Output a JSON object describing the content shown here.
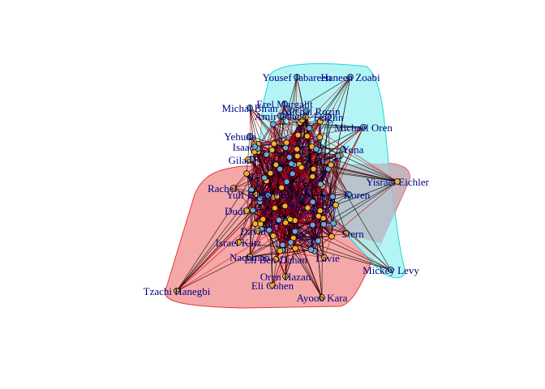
{
  "diagram": {
    "type": "network",
    "colors": {
      "background": "#ffffff",
      "label": "#000080",
      "community_red_fill": "#f4a3a3",
      "community_red_border": "#e23b3b",
      "community_cyan_fill": "#a6f3f3",
      "community_cyan_border": "#22d6d6",
      "overlap_fill": "#b8b8c4",
      "edge_dense": "#1a0070",
      "edge_red": "#cc0000",
      "edge_black": "#000000",
      "node_orange": "#f0b02a",
      "node_blue": "#6fa8d8"
    },
    "visible_names": [
      "Yousef Jabareen",
      "Haneen Zoabi",
      "Michael Oren",
      "Michal Biran",
      "Yehuda",
      "Isaac",
      "Gilad",
      "Rachel",
      "Yulf Edelstein",
      "Dudi",
      "Israel Katz",
      "Nachman",
      "Eli Ben-Dahan",
      "Oren Hazan",
      "Eli Cohen",
      "Ayoob Kara",
      "Tzachi Hanegbi",
      "Mickey Levy",
      "Yisrael Eichler",
      "Koren",
      "Stern",
      "Lavie",
      "Yona",
      "David",
      "Amir Ohana",
      "Erel Margalit",
      "Feiglin",
      "Michal Rozin"
    ],
    "nodes": [
      {
        "label": "Yousef Jabareen",
        "group": "blue"
      },
      {
        "label": "Haneen Zoabi",
        "group": "blue"
      },
      {
        "label": "Michael Oren",
        "group": "blue"
      },
      {
        "label": "Michal Biran",
        "group": "blue"
      },
      {
        "label": "Yisrael Eichler",
        "group": "orange"
      },
      {
        "label": "Mickey Levy",
        "group": "blue"
      },
      {
        "label": "Tzachi Hanegbi",
        "group": "orange"
      },
      {
        "label": "Eli Cohen",
        "group": "orange"
      },
      {
        "label": "Ayoob Kara",
        "group": "orange"
      },
      {
        "label": "Oren Hazan",
        "group": "orange"
      },
      {
        "label": "Israel Katz",
        "group": "orange"
      },
      {
        "label": "Eli Ben-Dahan",
        "group": "orange"
      },
      {
        "label": "Nachman",
        "group": "orange"
      },
      {
        "label": "Lavie",
        "group": "orange"
      },
      {
        "label": "Stern",
        "group": "orange"
      },
      {
        "label": "Koren",
        "group": "blue"
      },
      {
        "label": "Yona",
        "group": "blue"
      },
      {
        "label": "Gilad",
        "group": "orange"
      },
      {
        "label": "Rachel",
        "group": "orange"
      },
      {
        "label": "Yulf Edelstein",
        "group": "orange"
      },
      {
        "label": "Dudi",
        "group": "orange"
      },
      {
        "label": "David",
        "group": "orange"
      },
      {
        "label": "Yehuda",
        "group": "blue"
      },
      {
        "label": "Isaac",
        "group": "blue"
      },
      {
        "label": "Amir Ohana",
        "group": "blue"
      },
      {
        "label": "Erel Margalit",
        "group": "blue"
      },
      {
        "label": "Feiglin",
        "group": "blue"
      },
      {
        "label": "Michal Rozin",
        "group": "blue"
      }
    ]
  }
}
